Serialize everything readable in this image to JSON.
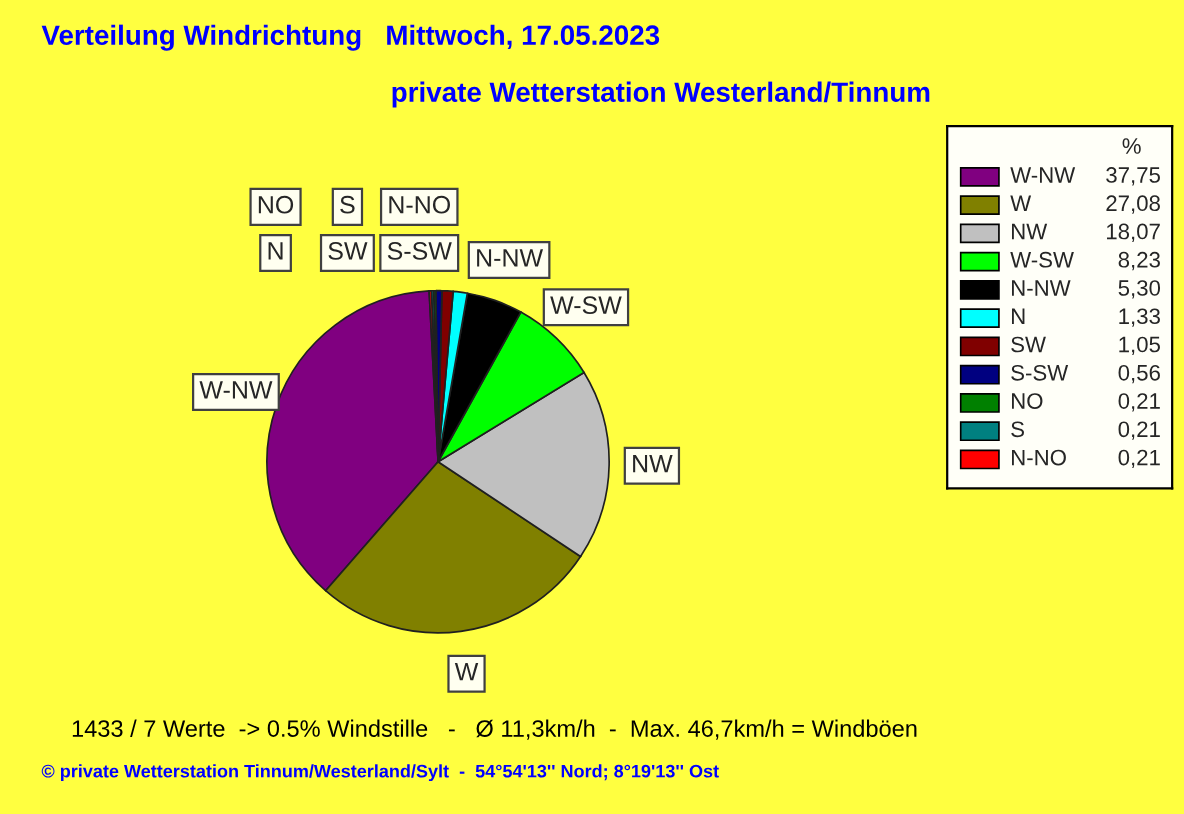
{
  "chart_data": {
    "type": "pie",
    "title": "Verteilung Windrichtung   Mittwoch, 17.05.2023",
    "subtitle": "private Wetterstation Westerland/Tinnum",
    "categories": [
      "W-NW",
      "W",
      "NW",
      "W-SW",
      "N-NW",
      "N",
      "SW",
      "S-SW",
      "NO",
      "S",
      "N-NO"
    ],
    "values": [
      37.75,
      27.08,
      18.07,
      8.23,
      5.3,
      1.33,
      1.05,
      0.56,
      0.21,
      0.21,
      0.21
    ],
    "value_labels": [
      "37,75",
      "27,08",
      "18,07",
      "8,23",
      "5,30",
      "1,33",
      "1,05",
      "0,56",
      "0,21",
      "0,21",
      "0,21"
    ],
    "colors": [
      "#800080",
      "#808000",
      "#c0c0c0",
      "#00ff00",
      "#000000",
      "#00ffff",
      "#800000",
      "#000080",
      "#008000",
      "#008080",
      "#ff0000"
    ],
    "legend": "right",
    "legend_title": "%",
    "annotations": [
      "1433 / 7 Werte  -> 0.5% Windstille   -   Ø 11,3km/h  -  Max. 46,7km/h = Windböen",
      "© private Wetterstation Tinnum/Westerland/Sylt  -  54°54'13'' Nord; 8°19'13'' Ost"
    ]
  }
}
